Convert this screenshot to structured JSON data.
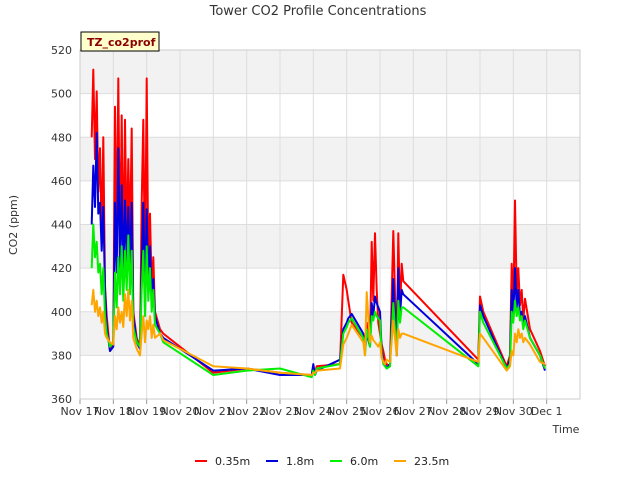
{
  "chart_data": {
    "type": "line",
    "title": "Tower CO2 Profile Concentrations",
    "xlabel": "Time",
    "ylabel": "CO2 (ppm)",
    "badge": "TZ_co2prof",
    "xlim": [
      16,
      31
    ],
    "ylim": [
      360,
      520
    ],
    "yticks": [
      360,
      380,
      400,
      420,
      440,
      460,
      480,
      500,
      520
    ],
    "xticks": [
      {
        "v": 16,
        "label": "Nov 17"
      },
      {
        "v": 17,
        "label": "Nov 18"
      },
      {
        "v": 18,
        "label": "Nov 19"
      },
      {
        "v": 19,
        "label": "Nov 20"
      },
      {
        "v": 20,
        "label": "Nov 21"
      },
      {
        "v": 21,
        "label": "Nov 22"
      },
      {
        "v": 22,
        "label": "Nov 23"
      },
      {
        "v": 23,
        "label": "Nov 24"
      },
      {
        "v": 24,
        "label": "Nov 25"
      },
      {
        "v": 25,
        "label": "Nov 26"
      },
      {
        "v": 26,
        "label": "Nov 27"
      },
      {
        "v": 27,
        "label": "Nov 28"
      },
      {
        "v": 28,
        "label": "Nov 29"
      },
      {
        "v": 29,
        "label": "Nov 30"
      },
      {
        "v": 30,
        "label": "Dec 1"
      }
    ],
    "grid": true,
    "legend": "bottom",
    "series": [
      {
        "name": "0.35m",
        "color": "#ff0000",
        "x": [
          16.35,
          16.4,
          16.45,
          16.5,
          16.55,
          16.6,
          16.65,
          16.7,
          16.75,
          16.8,
          16.9,
          17.0,
          17.05,
          17.1,
          17.15,
          17.2,
          17.25,
          17.3,
          17.35,
          17.4,
          17.45,
          17.5,
          17.55,
          17.6,
          17.7,
          17.8,
          17.85,
          17.9,
          17.95,
          18.0,
          18.05,
          18.1,
          18.15,
          18.2,
          18.25,
          18.4,
          18.5,
          20.0,
          21.0,
          22.0,
          22.95,
          23.0,
          23.05,
          23.1,
          23.8,
          23.9,
          24.0,
          24.05,
          24.1,
          24.15,
          24.5,
          24.55,
          24.6,
          24.7,
          24.75,
          24.8,
          24.85,
          24.9,
          24.95,
          25.0,
          25.05,
          25.1,
          25.15,
          25.2,
          25.3,
          25.4,
          25.5,
          25.55,
          25.6,
          25.65,
          25.7,
          27.95,
          28.0,
          28.1,
          28.8,
          28.9,
          28.95,
          29.0,
          29.05,
          29.1,
          29.15,
          29.2,
          29.25,
          29.3,
          29.35,
          29.5,
          29.8,
          29.95
        ],
        "y": [
          480,
          511,
          470,
          501,
          455,
          475,
          432,
          480,
          412,
          398,
          382,
          386,
          494,
          430,
          507,
          425,
          490,
          420,
          488,
          428,
          470,
          432,
          484,
          400,
          388,
          384,
          450,
          488,
          415,
          507,
          420,
          445,
          410,
          425,
          400,
          392,
          390,
          372,
          374,
          372,
          371,
          374,
          372,
          375,
          376,
          417,
          410,
          405,
          400,
          395,
          388,
          382,
          395,
          385,
          432,
          405,
          436,
          410,
          395,
          390,
          385,
          382,
          378,
          376,
          375,
          437,
          380,
          436,
          400,
          422,
          414,
          378,
          407,
          400,
          375,
          380,
          422,
          400,
          451,
          408,
          420,
          403,
          410,
          396,
          406,
          392,
          382,
          375
        ]
      },
      {
        "name": "1.8m",
        "color": "#0000dd",
        "x": [
          16.35,
          16.4,
          16.45,
          16.5,
          16.55,
          16.6,
          16.65,
          16.7,
          16.75,
          16.8,
          16.9,
          17.0,
          17.05,
          17.1,
          17.15,
          17.2,
          17.25,
          17.3,
          17.35,
          17.4,
          17.45,
          17.5,
          17.55,
          17.6,
          17.7,
          17.8,
          17.85,
          17.9,
          17.95,
          18.0,
          18.05,
          18.1,
          18.15,
          18.2,
          18.25,
          18.4,
          18.5,
          20.0,
          21.0,
          22.0,
          22.95,
          23.0,
          23.05,
          23.1,
          23.8,
          23.9,
          24.0,
          24.05,
          24.1,
          24.15,
          24.5,
          24.55,
          24.6,
          24.7,
          24.75,
          24.8,
          24.85,
          24.9,
          24.95,
          25.0,
          25.05,
          25.1,
          25.15,
          25.2,
          25.3,
          25.4,
          25.5,
          25.55,
          25.6,
          25.65,
          25.7,
          27.95,
          28.0,
          28.1,
          28.8,
          28.9,
          28.95,
          29.0,
          29.05,
          29.1,
          29.15,
          29.2,
          29.25,
          29.3,
          29.35,
          29.5,
          29.8,
          29.95
        ],
        "y": [
          440,
          467,
          448,
          482,
          445,
          450,
          428,
          448,
          410,
          393,
          382,
          384,
          450,
          418,
          475,
          420,
          458,
          415,
          451,
          422,
          448,
          418,
          450,
          398,
          386,
          383,
          420,
          450,
          405,
          447,
          412,
          430,
          405,
          415,
          398,
          390,
          388,
          373,
          374,
          371,
          371,
          376,
          371,
          373,
          378,
          392,
          395,
          397,
          398,
          399,
          390,
          382,
          390,
          384,
          404,
          398,
          407,
          404,
          402,
          400,
          382,
          377,
          376,
          374,
          376,
          415,
          380,
          420,
          398,
          410,
          408,
          376,
          403,
          398,
          374,
          378,
          410,
          398,
          420,
          402,
          410,
          398,
          400,
          393,
          398,
          388,
          380,
          373
        ]
      },
      {
        "name": "6.0m",
        "color": "#00ee00",
        "x": [
          16.35,
          16.4,
          16.45,
          16.5,
          16.55,
          16.6,
          16.65,
          16.7,
          16.75,
          16.8,
          16.9,
          17.0,
          17.05,
          17.1,
          17.15,
          17.2,
          17.25,
          17.3,
          17.35,
          17.4,
          17.45,
          17.5,
          17.55,
          17.6,
          17.7,
          17.8,
          17.85,
          17.9,
          17.95,
          18.0,
          18.05,
          18.1,
          18.15,
          18.2,
          18.25,
          18.4,
          18.5,
          20.0,
          21.0,
          22.0,
          22.95,
          23.0,
          23.05,
          23.1,
          23.8,
          23.9,
          24.0,
          24.05,
          24.1,
          24.15,
          24.5,
          24.55,
          24.6,
          24.7,
          24.75,
          24.8,
          24.85,
          24.9,
          24.95,
          25.0,
          25.05,
          25.1,
          25.15,
          25.2,
          25.3,
          25.4,
          25.5,
          25.55,
          25.6,
          25.65,
          25.7,
          27.95,
          28.0,
          28.1,
          28.8,
          28.9,
          28.95,
          29.0,
          29.05,
          29.1,
          29.15,
          29.2,
          29.25,
          29.3,
          29.35,
          29.5,
          29.8,
          29.95
        ],
        "y": [
          420,
          440,
          425,
          432,
          418,
          422,
          408,
          420,
          398,
          390,
          384,
          386,
          418,
          402,
          425,
          408,
          430,
          405,
          428,
          410,
          435,
          408,
          428,
          393,
          386,
          384,
          410,
          428,
          398,
          430,
          405,
          420,
          400,
          410,
          394,
          390,
          386,
          371,
          373,
          374,
          370,
          373,
          371,
          374,
          376,
          390,
          393,
          395,
          396,
          397,
          388,
          380,
          392,
          384,
          398,
          396,
          400,
          398,
          397,
          396,
          380,
          376,
          375,
          374,
          375,
          404,
          380,
          405,
          395,
          402,
          402,
          375,
          400,
          395,
          374,
          376,
          400,
          395,
          405,
          398,
          402,
          396,
          398,
          392,
          396,
          388,
          380,
          374
        ]
      },
      {
        "name": "23.5m",
        "color": "#ffa500",
        "x": [
          16.35,
          16.4,
          16.45,
          16.5,
          16.55,
          16.6,
          16.65,
          16.7,
          16.75,
          16.8,
          16.9,
          17.0,
          17.05,
          17.1,
          17.15,
          17.2,
          17.25,
          17.3,
          17.35,
          17.4,
          17.45,
          17.5,
          17.55,
          17.6,
          17.7,
          17.8,
          17.85,
          17.9,
          17.95,
          18.0,
          18.05,
          18.1,
          18.15,
          18.2,
          18.25,
          18.4,
          18.5,
          20.0,
          21.0,
          22.0,
          22.95,
          23.0,
          23.05,
          23.1,
          23.8,
          23.9,
          24.0,
          24.05,
          24.1,
          24.15,
          24.5,
          24.55,
          24.6,
          24.7,
          24.75,
          24.8,
          24.85,
          24.9,
          24.95,
          25.0,
          25.05,
          25.1,
          25.15,
          25.2,
          25.3,
          25.4,
          25.5,
          25.55,
          25.6,
          25.65,
          25.7,
          27.95,
          28.0,
          28.1,
          28.8,
          28.9,
          28.95,
          29.0,
          29.05,
          29.1,
          29.15,
          29.2,
          29.25,
          29.3,
          29.35,
          29.5,
          29.8,
          29.95
        ],
        "y": [
          403,
          410,
          400,
          405,
          398,
          402,
          395,
          400,
          390,
          388,
          386,
          385,
          398,
          392,
          402,
          395,
          400,
          393,
          408,
          398,
          410,
          396,
          405,
          388,
          383,
          380,
          390,
          398,
          386,
          396,
          392,
          398,
          388,
          394,
          388,
          390,
          387,
          375,
          374,
          372,
          371,
          372,
          372,
          373,
          374,
          385,
          388,
          390,
          392,
          394,
          386,
          380,
          409,
          386,
          389,
          387,
          386,
          385,
          384,
          386,
          379,
          377,
          376,
          378,
          377,
          396,
          380,
          392,
          388,
          390,
          390,
          377,
          390,
          388,
          373,
          375,
          382,
          380,
          390,
          386,
          392,
          388,
          390,
          386,
          388,
          385,
          377,
          376
        ]
      }
    ]
  }
}
